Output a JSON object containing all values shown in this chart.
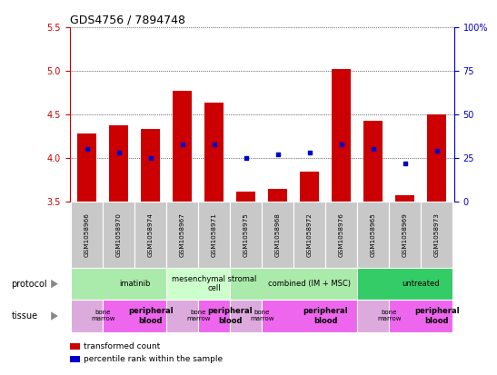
{
  "title": "GDS4756 / 7894748",
  "samples": [
    "GSM1058966",
    "GSM1058970",
    "GSM1058974",
    "GSM1058967",
    "GSM1058971",
    "GSM1058975",
    "GSM1058968",
    "GSM1058972",
    "GSM1058976",
    "GSM1058965",
    "GSM1058969",
    "GSM1058973"
  ],
  "transformed_count": [
    4.28,
    4.37,
    4.33,
    4.77,
    4.63,
    3.62,
    3.65,
    3.85,
    5.02,
    4.43,
    3.57,
    4.5
  ],
  "percentile_rank": [
    30,
    28,
    25,
    33,
    33,
    25,
    27,
    28,
    33,
    30,
    22,
    29
  ],
  "ylim": [
    3.5,
    5.5
  ],
  "yticks": [
    3.5,
    4.0,
    4.5,
    5.0,
    5.5
  ],
  "y2lim": [
    0,
    100
  ],
  "y2ticks": [
    0,
    25,
    50,
    75,
    100
  ],
  "y2ticklabels": [
    "0",
    "25",
    "50",
    "75",
    "100%"
  ],
  "bar_color": "#cc0000",
  "marker_color": "#0000cc",
  "bar_width": 0.6,
  "protocols": [
    {
      "label": "imatinib",
      "start": 0,
      "end": 3,
      "color": "#aaeaaa"
    },
    {
      "label": "mesenchymal stromal\ncell",
      "start": 3,
      "end": 5,
      "color": "#ccffcc"
    },
    {
      "label": "combined (IM + MSC)",
      "start": 5,
      "end": 9,
      "color": "#aaeaaa"
    },
    {
      "label": "untreated",
      "start": 9,
      "end": 12,
      "color": "#33cc66"
    }
  ],
  "tissues": [
    {
      "label": "bone\nmarrow",
      "start": 0,
      "end": 1,
      "color": "#ddaadd",
      "bold": false
    },
    {
      "label": "peripheral\nblood",
      "start": 1,
      "end": 3,
      "color": "#ee66ee",
      "bold": true
    },
    {
      "label": "bone\nmarrow",
      "start": 3,
      "end": 4,
      "color": "#ddaadd",
      "bold": false
    },
    {
      "label": "peripheral\nblood",
      "start": 4,
      "end": 5,
      "color": "#ee66ee",
      "bold": true
    },
    {
      "label": "bone\nmarrow",
      "start": 5,
      "end": 6,
      "color": "#ddaadd",
      "bold": false
    },
    {
      "label": "peripheral\nblood",
      "start": 6,
      "end": 9,
      "color": "#ee66ee",
      "bold": true
    },
    {
      "label": "bone\nmarrow",
      "start": 9,
      "end": 10,
      "color": "#ddaadd",
      "bold": false
    },
    {
      "label": "peripheral\nblood",
      "start": 10,
      "end": 12,
      "color": "#ee66ee",
      "bold": true
    }
  ],
  "legend_items": [
    {
      "label": "transformed count",
      "color": "#cc0000"
    },
    {
      "label": "percentile rank within the sample",
      "color": "#0000cc"
    }
  ],
  "left_label_protocol": "protocol",
  "left_label_tissue": "tissue",
  "sample_box_color": "#c8c8c8",
  "bg_color": "#ffffff",
  "yaxis_color": "#cc0000",
  "y2axis_color": "#0000cc"
}
